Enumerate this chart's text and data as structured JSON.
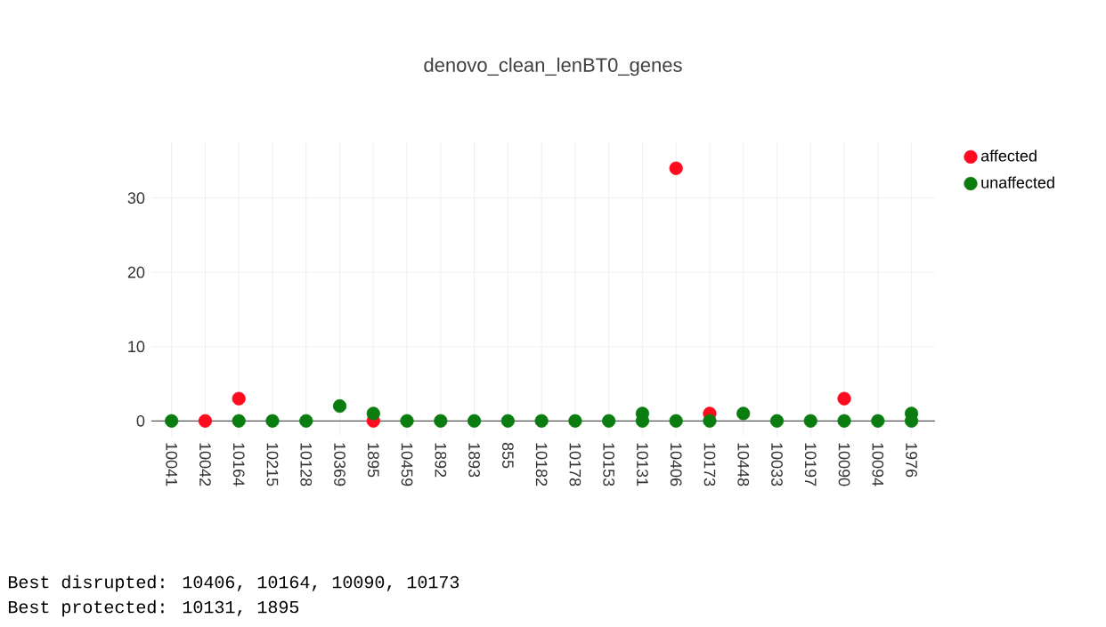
{
  "chart_data": {
    "type": "scatter",
    "title": "denovo_clean_lenBT0_genes",
    "categories": [
      "10041",
      "10042",
      "10164",
      "10215",
      "10128",
      "10369",
      "1895",
      "10459",
      "1892",
      "1893",
      "855",
      "10182",
      "10178",
      "10153",
      "10131",
      "10406",
      "10173",
      "10448",
      "10033",
      "10197",
      "10090",
      "10094",
      "1976"
    ],
    "series": [
      {
        "name": "affected",
        "color": "#ff0a1e",
        "values": [
          null,
          0,
          3,
          null,
          null,
          null,
          0,
          null,
          null,
          null,
          null,
          null,
          null,
          null,
          null,
          34,
          1,
          null,
          null,
          null,
          3,
          null,
          null
        ]
      },
      {
        "name": "unaffected",
        "color": "#0b7d10",
        "values": [
          0,
          null,
          0,
          0,
          0,
          2,
          1,
          0,
          0,
          0,
          0,
          0,
          0,
          0,
          0,
          0,
          0,
          1,
          0,
          0,
          0,
          0,
          0
        ]
      },
      {
        "color": "#0b7d10",
        "values": [
          null,
          null,
          null,
          null,
          null,
          null,
          null,
          null,
          null,
          null,
          null,
          null,
          null,
          null,
          1,
          null,
          null,
          null,
          null,
          null,
          null,
          null,
          1
        ]
      }
    ],
    "ylim": [
      -2,
      37.5
    ],
    "yticks": [
      0,
      10,
      20,
      30
    ],
    "grid": true,
    "legend": "top right",
    "marker": "circle",
    "annotations": [
      "Best disrupted: 10406, 10164, 10090, 10173",
      "Best protected: 10131, 1895"
    ]
  }
}
